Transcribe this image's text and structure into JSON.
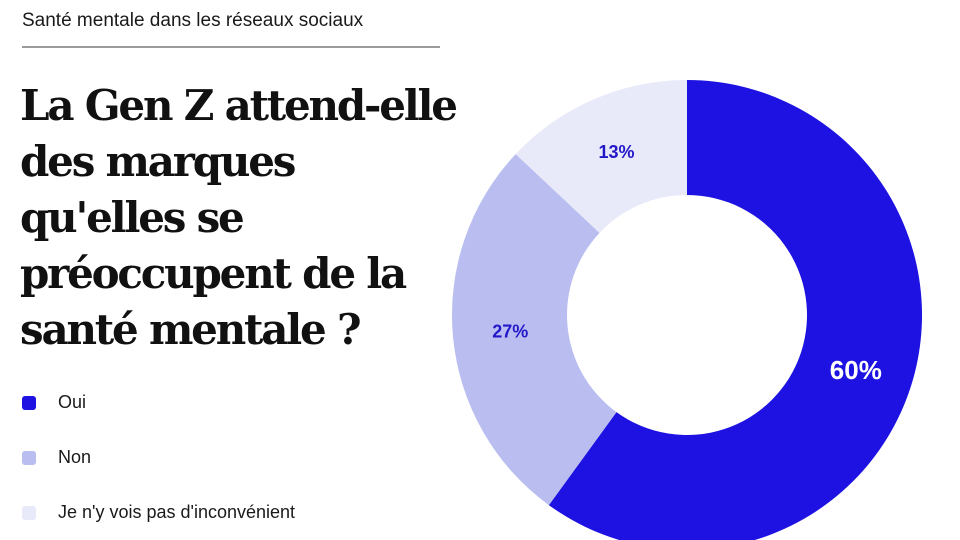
{
  "header": {
    "kicker": "Santé mentale dans les réseaux sociaux"
  },
  "headline": "La Gen Z attend-elle des marques qu'elles se préoccupent de la santé mentale ?",
  "chart_data": {
    "type": "pie",
    "variant": "donut",
    "categories": [
      "Oui",
      "Non",
      "Je n'y vois pas d'inconvénient"
    ],
    "values": [
      60,
      27,
      13
    ],
    "labels": [
      "60%",
      "27%",
      "13%"
    ],
    "colors": [
      "#1d12e2",
      "#b9bdf0",
      "#e8e9f9"
    ],
    "label_colors": [
      "#ffffff",
      "#2218c9",
      "#2218c9"
    ],
    "legend_placement": "bottom-left",
    "start_angle": "top, clockwise"
  }
}
